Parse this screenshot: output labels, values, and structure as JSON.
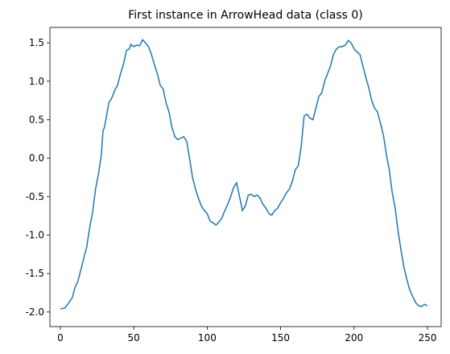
{
  "chart_data": {
    "type": "line",
    "title": "First instance in ArrowHead data (class 0)",
    "x": [
      0,
      3,
      5,
      8,
      10,
      12,
      14,
      16,
      18,
      20,
      22,
      24,
      26,
      28,
      29,
      30,
      31,
      33,
      35,
      37,
      39,
      41,
      43,
      45,
      47,
      48,
      50,
      52,
      54,
      56,
      58,
      60,
      62,
      64,
      66,
      68,
      70,
      72,
      74,
      76,
      78,
      80,
      82,
      84,
      86,
      88,
      90,
      92,
      94,
      96,
      98,
      100,
      102,
      104,
      106,
      108,
      110,
      112,
      114,
      116,
      118,
      120,
      122,
      124,
      126,
      128,
      130,
      132,
      134,
      136,
      138,
      140,
      142,
      144,
      146,
      148,
      150,
      152,
      154,
      156,
      158,
      160,
      162,
      164,
      166,
      168,
      170,
      172,
      174,
      176,
      178,
      180,
      182,
      184,
      186,
      188,
      190,
      192,
      194,
      196,
      198,
      200,
      202,
      204,
      206,
      208,
      210,
      212,
      214,
      216,
      218,
      220,
      222,
      224,
      226,
      228,
      230,
      232,
      234,
      236,
      238,
      240,
      242,
      244,
      246,
      248,
      250
    ],
    "series": [
      {
        "name": "class 0",
        "color": "#1f77b4",
        "values": [
          -1.96,
          -1.95,
          -1.9,
          -1.82,
          -1.68,
          -1.6,
          -1.45,
          -1.3,
          -1.15,
          -0.9,
          -0.7,
          -0.4,
          -0.2,
          0.05,
          0.35,
          0.4,
          0.5,
          0.72,
          0.78,
          0.88,
          0.95,
          1.1,
          1.22,
          1.4,
          1.42,
          1.48,
          1.45,
          1.47,
          1.46,
          1.54,
          1.5,
          1.45,
          1.35,
          1.22,
          1.1,
          0.95,
          0.9,
          0.72,
          0.6,
          0.4,
          0.28,
          0.24,
          0.26,
          0.28,
          0.22,
          0.0,
          -0.25,
          -0.4,
          -0.52,
          -0.62,
          -0.68,
          -0.72,
          -0.82,
          -0.84,
          -0.87,
          -0.83,
          -0.78,
          -0.68,
          -0.6,
          -0.5,
          -0.38,
          -0.32,
          -0.5,
          -0.68,
          -0.62,
          -0.48,
          -0.47,
          -0.5,
          -0.48,
          -0.52,
          -0.6,
          -0.65,
          -0.72,
          -0.74,
          -0.68,
          -0.65,
          -0.58,
          -0.52,
          -0.45,
          -0.4,
          -0.3,
          -0.15,
          -0.1,
          0.15,
          0.55,
          0.57,
          0.52,
          0.5,
          0.65,
          0.8,
          0.85,
          1.0,
          1.1,
          1.2,
          1.35,
          1.42,
          1.45,
          1.45,
          1.47,
          1.53,
          1.5,
          1.42,
          1.38,
          1.35,
          1.2,
          1.05,
          0.92,
          0.75,
          0.65,
          0.6,
          0.45,
          0.3,
          0.05,
          -0.15,
          -0.45,
          -0.65,
          -0.95,
          -1.2,
          -1.42,
          -1.58,
          -1.72,
          -1.8,
          -1.88,
          -1.92,
          -1.93,
          -1.9,
          -1.92
        ]
      }
    ],
    "xlim": [
      -7.1,
      259.3
    ],
    "ylim": [
      -2.19,
      1.7
    ],
    "xticks": [
      0,
      50,
      100,
      150,
      200,
      250
    ],
    "yticks": [
      {
        "value": -2,
        "label": "-2.0"
      },
      -1.5,
      {
        "value": -1,
        "label": "-1.0"
      },
      -0.5,
      {
        "value": 0,
        "label": "0.0"
      },
      0.5,
      {
        "value": 1,
        "label": "1.0"
      },
      1.5
    ]
  }
}
